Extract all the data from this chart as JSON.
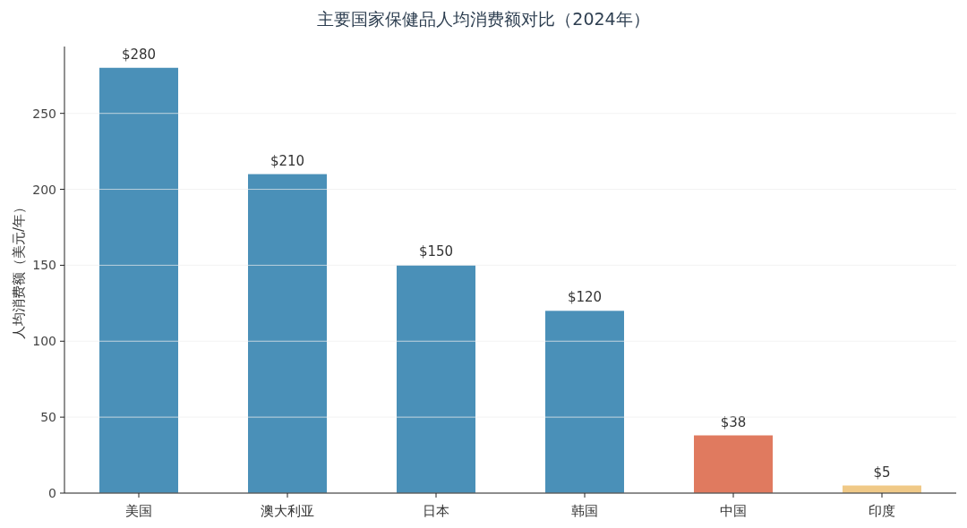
{
  "chart_data": {
    "type": "bar",
    "title": "主要国家保健品人均消费额对比（2024年）",
    "ylabel": "人均消费额（美元/年）",
    "categories": [
      "美国",
      "澳大利亚",
      "日本",
      "韩国",
      "中国",
      "印度"
    ],
    "values": [
      280,
      210,
      150,
      120,
      38,
      5
    ],
    "colors": [
      "#4a90b8",
      "#4a90b8",
      "#4a90b8",
      "#4a90b8",
      "#e07a5f",
      "#f0c987"
    ],
    "value_labels": [
      "$280",
      "$210",
      "$150",
      "$120",
      "$38",
      "$5"
    ],
    "ylim": [
      0,
      294
    ],
    "yticks": [
      0,
      50,
      100,
      150,
      200,
      250
    ],
    "grid": "y"
  }
}
